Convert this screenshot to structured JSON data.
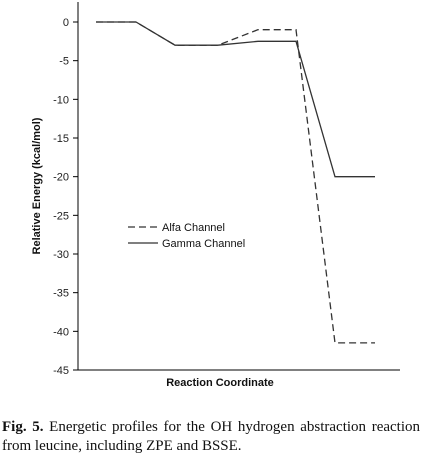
{
  "chart_data": {
    "type": "line",
    "xlabel": "Reaction Coordinate",
    "ylabel": "Relative Energy (kcal/mol)",
    "ylim": [
      -45,
      0
    ],
    "yticks": [
      0,
      -5,
      -10,
      -15,
      -20,
      -25,
      -30,
      -35,
      -40,
      -45
    ],
    "grid": false,
    "legend_position": "center-left",
    "series": [
      {
        "name": "Alfa Channel",
        "style": "dashed",
        "color": "#333333",
        "points": [
          [
            0,
            0
          ],
          [
            1,
            0
          ],
          [
            2,
            -3
          ],
          [
            3,
            -3
          ],
          [
            4,
            -1
          ],
          [
            5,
            -1
          ],
          [
            6,
            -41.5
          ],
          [
            7,
            -41.5
          ]
        ]
      },
      {
        "name": "Gamma Channel",
        "style": "solid",
        "color": "#333333",
        "points": [
          [
            0,
            0
          ],
          [
            1,
            0
          ],
          [
            2,
            -3
          ],
          [
            3,
            -3
          ],
          [
            4,
            -2.5
          ],
          [
            5,
            -2.5
          ],
          [
            6,
            -20
          ],
          [
            7,
            -20
          ]
        ]
      }
    ]
  },
  "caption": {
    "label": "Fig. 5.",
    "text": " Energetic profiles for the OH hydrogen abstraction reaction from leucine, including ZPE and BSSE."
  }
}
